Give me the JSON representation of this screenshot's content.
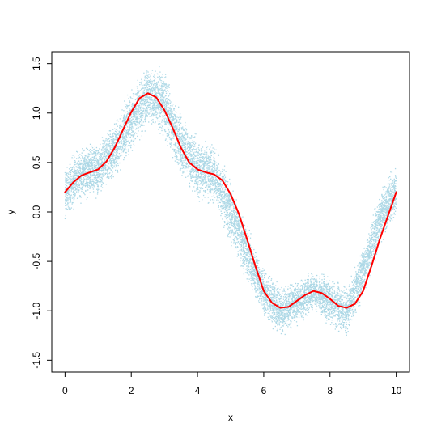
{
  "chart_data": {
    "type": "scatter",
    "title": "",
    "xlabel": "x",
    "ylabel": "y",
    "xlim": [
      -0.4,
      10.4
    ],
    "ylim": [
      -1.62,
      1.62
    ],
    "xticks": [
      0,
      2,
      4,
      6,
      8,
      10
    ],
    "xtick_labels": [
      "0",
      "2",
      "4",
      "6",
      "8",
      "10"
    ],
    "yticks": [
      -1.5,
      -1.0,
      -0.5,
      0.0,
      0.5,
      1.0,
      1.5
    ],
    "ytick_labels": [
      "-1.5",
      "-1.0",
      "-0.5",
      "0.0",
      "0.5",
      "1.0",
      "1.5"
    ],
    "grid": false,
    "legend": "none",
    "series": [
      {
        "kind": "scatter-band",
        "color": "#add8e6",
        "x": [
          0,
          0.5,
          1,
          1.5,
          2,
          2.5,
          3,
          3.5,
          4,
          4.5,
          5,
          5.5,
          6,
          6.5,
          7,
          7.5,
          8,
          8.5,
          9,
          9.5,
          10
        ],
        "lower": [
          -0.1,
          0.05,
          0.1,
          0.3,
          0.55,
          0.8,
          0.7,
          0.3,
          0.1,
          0.0,
          -0.4,
          -0.75,
          -1.1,
          -1.3,
          -1.2,
          -1.05,
          -1.2,
          -1.32,
          -0.9,
          -0.4,
          -0.1
        ],
        "upper": [
          0.5,
          0.72,
          0.78,
          0.98,
          1.3,
          1.57,
          1.48,
          1.05,
          0.8,
          0.75,
          0.4,
          -0.1,
          -0.55,
          -0.7,
          -0.65,
          -0.55,
          -0.6,
          -0.72,
          -0.3,
          0.25,
          0.55
        ]
      },
      {
        "kind": "line",
        "color": "#ff0000",
        "x": [
          0,
          0.25,
          0.5,
          0.75,
          1,
          1.25,
          1.5,
          1.75,
          2,
          2.25,
          2.5,
          2.75,
          3,
          3.25,
          3.5,
          3.75,
          4,
          4.25,
          4.5,
          4.75,
          5,
          5.25,
          5.5,
          5.75,
          6,
          6.25,
          6.5,
          6.75,
          7,
          7.25,
          7.5,
          7.75,
          8,
          8.25,
          8.5,
          8.75,
          9,
          9.25,
          9.5,
          9.75,
          10
        ],
        "y": [
          0.2,
          0.3,
          0.37,
          0.4,
          0.43,
          0.51,
          0.65,
          0.83,
          1.01,
          1.15,
          1.2,
          1.16,
          1.03,
          0.85,
          0.65,
          0.5,
          0.43,
          0.4,
          0.38,
          0.32,
          0.18,
          -0.02,
          -0.28,
          -0.55,
          -0.8,
          -0.92,
          -0.97,
          -0.96,
          -0.9,
          -0.84,
          -0.8,
          -0.82,
          -0.88,
          -0.95,
          -0.97,
          -0.93,
          -0.8,
          -0.55,
          -0.28,
          -0.04,
          0.2
        ]
      }
    ]
  }
}
